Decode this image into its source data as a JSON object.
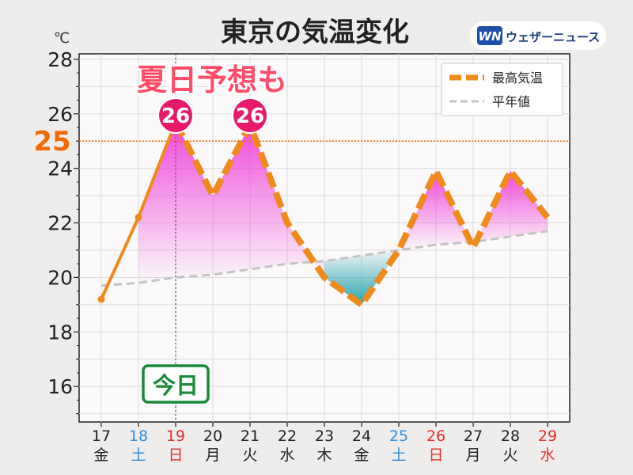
{
  "title": "東京の気温変化",
  "unit": "℃",
  "brand": {
    "logo_text": "WN",
    "name": "ウェザーニュース"
  },
  "headline": "夏日予想も",
  "today_label": "今日",
  "threshold_label": "25",
  "peak_badges": [
    "26",
    "26"
  ],
  "legend": {
    "max_temp": "最高気温",
    "normal": "平年値"
  },
  "colors": {
    "max_line": "#f08a1c",
    "normal_line": "#c4c4c4",
    "threshold": "#f06a00",
    "badge": "#e8196c",
    "headline": "#ff4d6a",
    "today": "#1a8a3a",
    "weekday": "#222222",
    "saturday": "#2f8fdd",
    "holiday": "#e03030",
    "warm_fill": "#ee3ed8",
    "cool_fill": "#1aa0a8"
  },
  "chart_data": {
    "type": "line",
    "title": "東京の気温変化",
    "ylabel": "℃",
    "ylim": [
      14.7,
      28.2
    ],
    "yticks": [
      16,
      18,
      20,
      22,
      24,
      26,
      28
    ],
    "grid": true,
    "legend_position": "top-right",
    "categories": [
      "17",
      "18",
      "19",
      "20",
      "21",
      "22",
      "23",
      "24",
      "25",
      "26",
      "27",
      "28",
      "29"
    ],
    "weekdays": [
      "金",
      "土",
      "日",
      "月",
      "火",
      "水",
      "木",
      "金",
      "土",
      "日",
      "月",
      "火",
      "水"
    ],
    "day_types": [
      "weekday",
      "saturday",
      "holiday",
      "weekday",
      "weekday",
      "weekday",
      "weekday",
      "weekday",
      "saturday",
      "holiday",
      "weekday",
      "weekday",
      "holiday"
    ],
    "today_index": 2,
    "threshold": 25,
    "series": [
      {
        "name": "最高気温",
        "values": [
          19.2,
          22.2,
          25.7,
          23.0,
          25.6,
          22.0,
          20.0,
          19.0,
          21.0,
          23.9,
          21.1,
          23.9,
          22.2
        ],
        "observed_until_index": 2
      },
      {
        "name": "平年値",
        "values": [
          19.7,
          19.8,
          20.0,
          20.1,
          20.3,
          20.5,
          20.6,
          20.8,
          21.0,
          21.2,
          21.3,
          21.5,
          21.7
        ]
      }
    ]
  }
}
